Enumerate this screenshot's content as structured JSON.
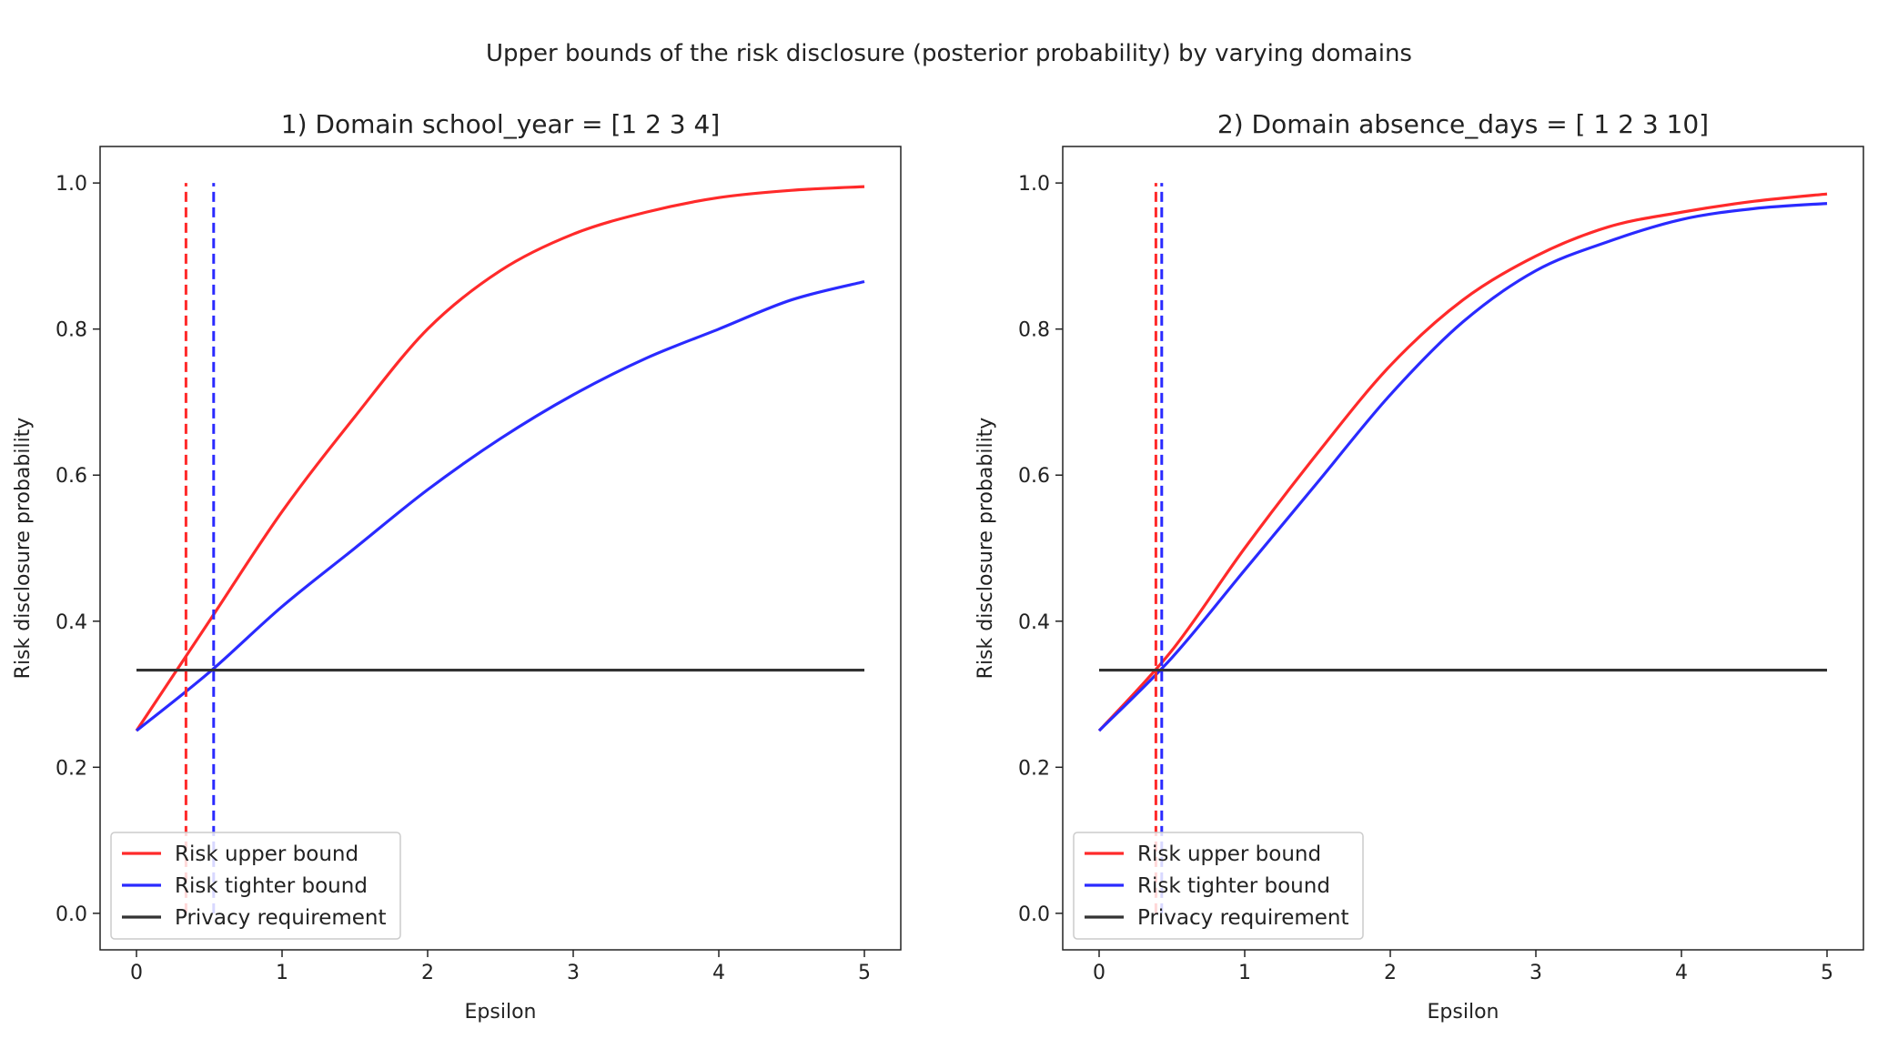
{
  "figure": {
    "suptitle": "Upper bounds of the risk disclosure (posterior probability) by varying domains"
  },
  "colors": {
    "upper": "#ff2a2a",
    "tighter": "#2a2aff",
    "requirement": "#333333"
  },
  "chart_data": [
    {
      "type": "line",
      "title": "1) Domain school_year = [1 2 3 4]",
      "xlabel": "Epsilon",
      "ylabel": "Risk disclosure probability",
      "xlim": [
        -0.25,
        5.25
      ],
      "ylim": [
        -0.05,
        1.05
      ],
      "xticks": [
        "0",
        "1",
        "2",
        "3",
        "4",
        "5"
      ],
      "yticks": [
        "0.0",
        "0.2",
        "0.4",
        "0.6",
        "0.8",
        "1.0"
      ],
      "legend_position": "lower-left",
      "series": [
        {
          "name": "Risk upper bound",
          "style": "solid",
          "color": "#ff2a2a",
          "x": [
            0,
            0.5,
            1.0,
            1.5,
            2.0,
            2.5,
            3.0,
            3.5,
            4.0,
            4.5,
            5.0
          ],
          "y": [
            0.25,
            0.4,
            0.55,
            0.68,
            0.8,
            0.88,
            0.93,
            0.96,
            0.98,
            0.99,
            0.995
          ]
        },
        {
          "name": "Risk tighter bound",
          "style": "solid",
          "color": "#2a2aff",
          "x": [
            0,
            0.5,
            1.0,
            1.5,
            2.0,
            2.5,
            3.0,
            3.5,
            4.0,
            4.5,
            5.0
          ],
          "y": [
            0.25,
            0.33,
            0.42,
            0.5,
            0.58,
            0.65,
            0.71,
            0.76,
            0.8,
            0.84,
            0.865
          ]
        },
        {
          "name": "Privacy requirement",
          "style": "solid",
          "color": "#333333",
          "x": [
            0,
            5.0
          ],
          "y": [
            0.333,
            0.333
          ]
        },
        {
          "style": "dashed",
          "color": "#ff2a2a",
          "x": [
            0.34,
            0.34
          ],
          "y": [
            0.0,
            1.0
          ]
        },
        {
          "style": "dashed",
          "color": "#2a2aff",
          "x": [
            0.53,
            0.53
          ],
          "y": [
            0.0,
            1.0
          ]
        }
      ]
    },
    {
      "type": "line",
      "title": "2) Domain absence_days = [ 1  2  3 10]",
      "xlabel": "Epsilon",
      "ylabel": "Risk disclosure probability",
      "xlim": [
        -0.25,
        5.25
      ],
      "ylim": [
        -0.05,
        1.05
      ],
      "xticks": [
        "0",
        "1",
        "2",
        "3",
        "4",
        "5"
      ],
      "yticks": [
        "0.0",
        "0.2",
        "0.4",
        "0.6",
        "0.8",
        "1.0"
      ],
      "legend_position": "lower-left",
      "series": [
        {
          "name": "Risk upper bound",
          "style": "solid",
          "color": "#ff2a2a",
          "x": [
            0,
            0.5,
            1.0,
            1.5,
            2.0,
            2.5,
            3.0,
            3.5,
            4.0,
            4.5,
            5.0
          ],
          "y": [
            0.25,
            0.36,
            0.5,
            0.63,
            0.75,
            0.84,
            0.9,
            0.94,
            0.96,
            0.975,
            0.985
          ]
        },
        {
          "name": "Risk tighter bound",
          "style": "solid",
          "color": "#2a2aff",
          "x": [
            0,
            0.5,
            1.0,
            1.5,
            2.0,
            2.5,
            3.0,
            3.5,
            4.0,
            4.5,
            5.0
          ],
          "y": [
            0.25,
            0.35,
            0.47,
            0.59,
            0.71,
            0.81,
            0.88,
            0.92,
            0.95,
            0.965,
            0.972
          ]
        },
        {
          "name": "Privacy requirement",
          "style": "solid",
          "color": "#333333",
          "x": [
            0,
            5.0
          ],
          "y": [
            0.333,
            0.333
          ]
        },
        {
          "style": "dashed",
          "color": "#ff2a2a",
          "x": [
            0.39,
            0.39
          ],
          "y": [
            0.0,
            1.0
          ]
        },
        {
          "style": "dashed",
          "color": "#2a2aff",
          "x": [
            0.43,
            0.43
          ],
          "y": [
            0.0,
            1.0
          ]
        }
      ]
    }
  ]
}
